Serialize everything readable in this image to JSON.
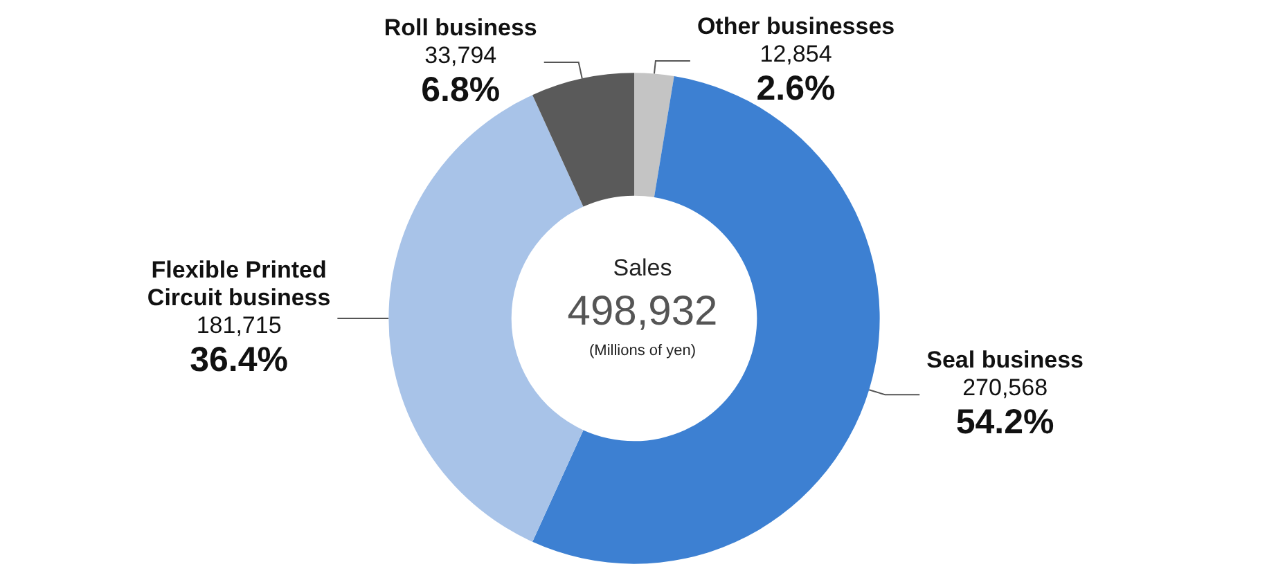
{
  "chart_data": {
    "type": "donut",
    "title": "Sales",
    "categories": [
      "Other businesses",
      "Seal business",
      "Flexible Printed Circuit business",
      "Roll business"
    ],
    "values": [
      2.6,
      54.2,
      36.4,
      6.8
    ],
    "colors": [
      "#c4c4c4",
      "#3d80d2",
      "#a8c3e8",
      "#5a5a5a"
    ],
    "value_labels": [
      "2.6%",
      "54.2%",
      "36.4%",
      "6.8%"
    ],
    "annotations": [
      "498,932",
      "(Millions of yen)",
      {
        "text": "12,854",
        "x": "Other businesses"
      },
      {
        "text": "270,568",
        "x": "Seal business"
      },
      {
        "text": "181,715",
        "x": "Flexible Printed Circuit business"
      },
      {
        "text": "33,794",
        "x": "Roll business"
      }
    ],
    "legend": false
  }
}
